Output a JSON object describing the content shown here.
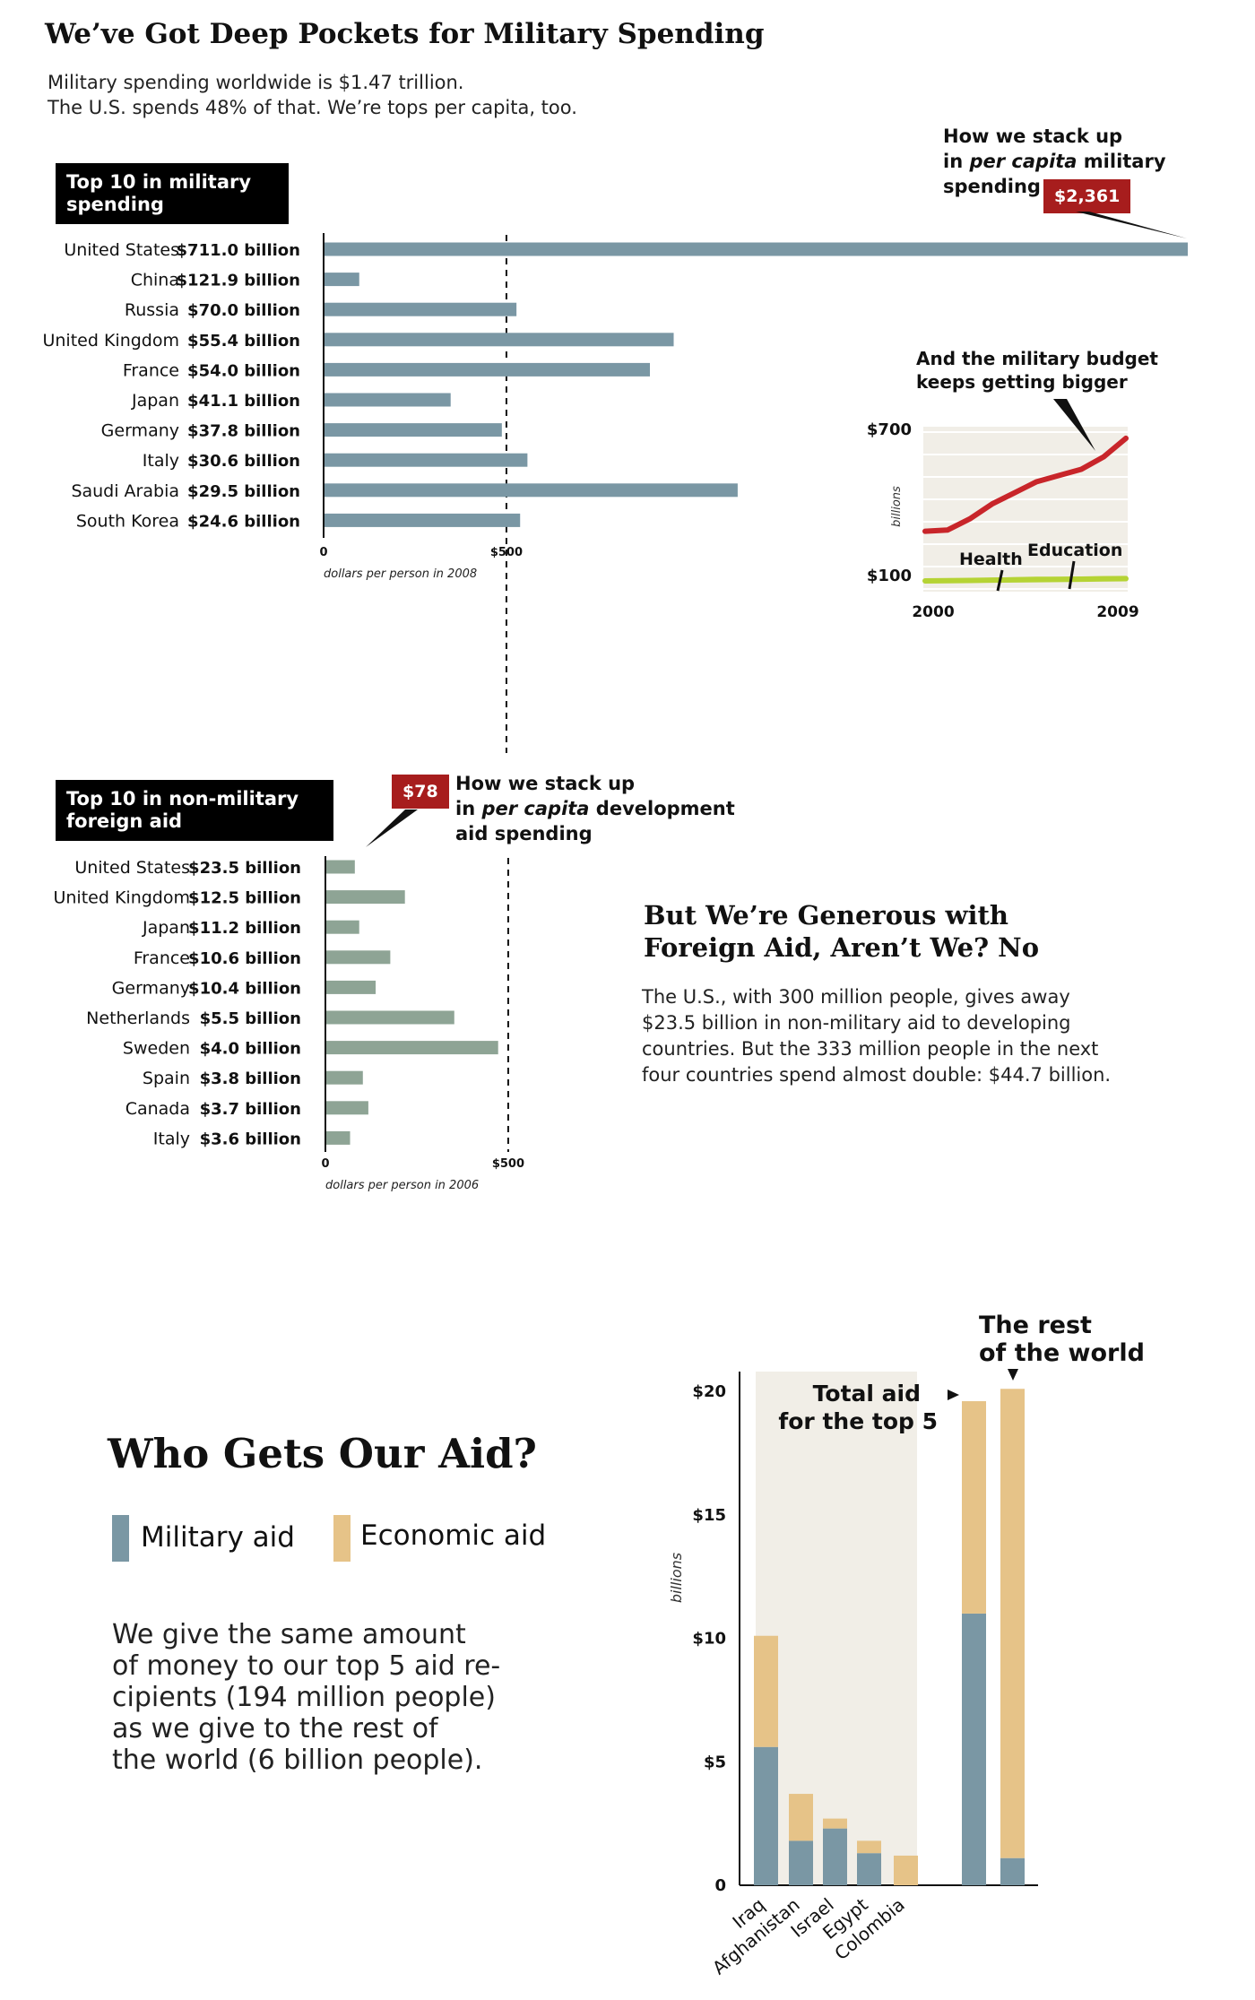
{
  "header": {
    "title": "We’ve Got Deep Pockets for Military Spending",
    "subtitle_line1": "Military spending worldwide is $1.47 trillion.",
    "subtitle_line2": "The U.S. spends 48% of that. We’re tops per capita, too."
  },
  "military": {
    "label_line1": "Top 10 in military",
    "label_line2": "spending",
    "callout_line1": "How we stack up",
    "callout_line2_pre": "in ",
    "callout_line2_em": "per capita",
    "callout_line2_post": " military",
    "callout_line3": "spending",
    "us_per_capita": "$2,361"
  },
  "aid": {
    "label_line1": "Top 10 in non-military",
    "label_line2": "foreign aid",
    "callout_line1": "How we stack up",
    "callout_line2_pre": "in ",
    "callout_line2_em": "per capita",
    "callout_line2_post": " development",
    "callout_line3": "aid spending",
    "us_per_capita": "$78"
  },
  "generous": {
    "title_line1": "But We’re Generous with",
    "title_line2": "Foreign Aid, Aren’t We? No",
    "body_line1": "The U.S., with 300 million people, gives away",
    "body_line2": "$23.5 billion in non-military aid to developing",
    "body_line3": "countries. But the 333 million people in the next",
    "body_line4": "four countries spend almost double: $44.7 billion."
  },
  "who": {
    "title": "Who Gets Our Aid?",
    "legend_military": "Military aid",
    "legend_economic": "Economic aid",
    "body_line1": "We give the same amount",
    "body_line2": "of money to our top 5 aid re-",
    "body_line3": "cipients  (194 million people)",
    "body_line4": "as we give to the rest of",
    "body_line5": "the world (6 billion people)."
  },
  "colors": {
    "military_bar": "#7a97a4",
    "aid_bar": "#8ea495",
    "red": "#a71d1d",
    "military_aid": "#7a97a4",
    "economic_aid": "#e6c388",
    "panel": "#f1eee7",
    "trend_red": "#c8252a",
    "trend_green": "#b5d334"
  },
  "chart_data": [
    {
      "type": "bar",
      "orientation": "horizontal",
      "categories": [
        "United States",
        "China",
        "Russia",
        "United Kingdom",
        "France",
        "Japan",
        "Germany",
        "Italy",
        "Saudi Arabia",
        "South Korea"
      ],
      "value_labels": [
        "$711.0 billion",
        "$121.9 billion",
        "$70.0 billion",
        "$55.4 billion",
        "$54.0 billion",
        "$41.1 billion",
        "$37.8 billion",
        "$30.6 billion",
        "$29.5 billion",
        "$24.6 billion"
      ],
      "values": [
        2361,
        95,
        525,
        955,
        890,
        345,
        485,
        555,
        1130,
        535
      ],
      "xlabel": "dollars per person in 2008",
      "xticks": [
        0,
        500
      ],
      "xtick_labels": [
        "0",
        "$500"
      ],
      "xlim": [
        0,
        2400
      ]
    },
    {
      "type": "bar",
      "orientation": "horizontal",
      "categories": [
        "United States",
        "United Kingdom",
        "Japan",
        "France",
        "Germany",
        "Netherlands",
        "Sweden",
        "Spain",
        "Canada",
        "Italy"
      ],
      "value_labels": [
        "$23.5 billion",
        "$12.5 billion",
        "$11.2 billion",
        "$10.6 billion",
        "$10.4 billion",
        "$5.5 billion",
        "$4.0 billion",
        "$3.8 billion",
        "$3.7 billion",
        "$3.6 billion"
      ],
      "values": [
        78,
        215,
        90,
        175,
        135,
        350,
        470,
        100,
        115,
        65
      ],
      "xlabel": "dollars per person in 2006",
      "xticks": [
        0,
        500
      ],
      "xtick_labels": [
        "0",
        "$500"
      ],
      "xlim": [
        0,
        2400
      ]
    },
    {
      "type": "line",
      "title": "And the military budget keeps getting bigger",
      "ylabel": "billions",
      "x": [
        2000,
        2001,
        2002,
        2003,
        2004,
        2005,
        2006,
        2007,
        2008,
        2009
      ],
      "xtick_labels": [
        "2000",
        "2009"
      ],
      "ytick_labels": [
        "$700",
        "$100"
      ],
      "ylim": [
        100,
        700
      ],
      "series": [
        {
          "name": "",
          "values": [
            300,
            305,
            350,
            410,
            455,
            500,
            525,
            550,
            600,
            675
          ]
        },
        {
          "name": "Health",
          "values": [
            100,
            101,
            102,
            103,
            104,
            105,
            106,
            107,
            108,
            109
          ]
        },
        {
          "name": "Education",
          "values": [
            100,
            102,
            104,
            106,
            108,
            110,
            110,
            111,
            112,
            113
          ]
        }
      ]
    },
    {
      "type": "bar",
      "stacked": true,
      "ylabel": "billions",
      "categories": [
        "Iraq",
        "Afghanistan",
        "Israel",
        "Egypt",
        "Colombia",
        "Total aid for the top 5",
        "The rest of the world"
      ],
      "ytick_labels": [
        "0",
        "$5",
        "$10",
        "$15",
        "$20"
      ],
      "ylim": [
        0,
        20
      ],
      "annotations": [
        "Total aid for the top 5",
        "The rest of the world"
      ],
      "series": [
        {
          "name": "Military aid",
          "values": [
            5.6,
            1.8,
            2.3,
            1.3,
            0.0,
            11.0,
            1.1
          ]
        },
        {
          "name": "Economic aid",
          "values": [
            4.5,
            1.9,
            0.4,
            0.5,
            1.2,
            8.6,
            19.0
          ]
        }
      ]
    }
  ]
}
